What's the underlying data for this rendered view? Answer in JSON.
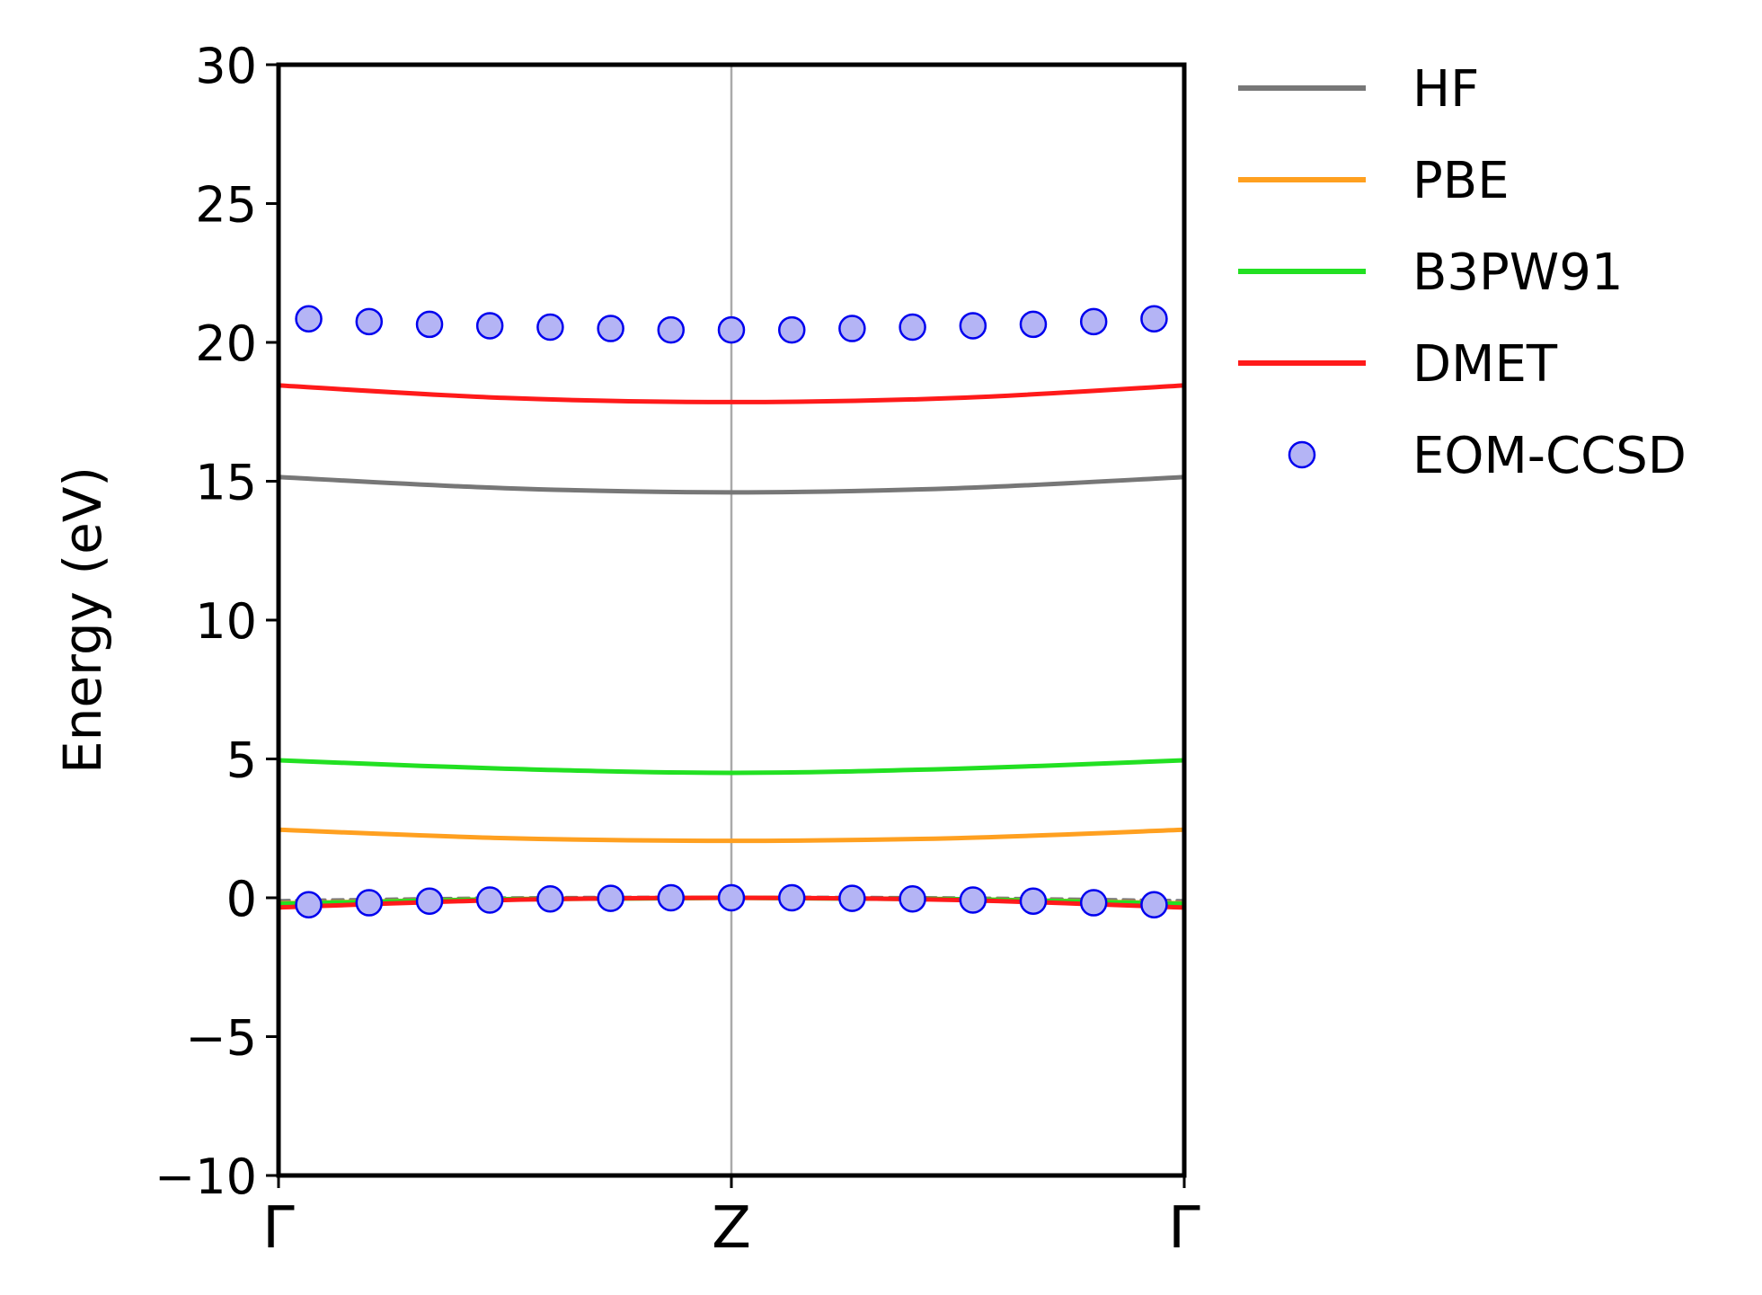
{
  "chart_data": {
    "type": "line",
    "title": "",
    "xlabel": "",
    "ylabel": "Energy (eV)",
    "ylim": [
      -10,
      30
    ],
    "xlim": [
      0,
      1
    ],
    "yticks": [
      -10,
      -5,
      0,
      5,
      10,
      15,
      20,
      25,
      30
    ],
    "ytick_labels": [
      "−10",
      "−5",
      "0",
      "5",
      "10",
      "15",
      "20",
      "25",
      "30"
    ],
    "xticks": [
      0,
      0.5,
      1
    ],
    "xtick_labels": [
      "Γ",
      "Z",
      "Γ"
    ],
    "vline_at": 0.5,
    "grid": false,
    "legend_position": "outside-right-top",
    "series": [
      {
        "name": "HF",
        "kind": "line",
        "color": "#777777",
        "bands": [
          {
            "x": [
              0,
              0.25,
              0.5,
              0.75,
              1
            ],
            "y": [
              15.15,
              14.75,
              14.6,
              14.75,
              15.15
            ]
          },
          {
            "x": [
              0,
              0.25,
              0.5,
              0.75,
              1
            ],
            "y": [
              -0.1,
              0.0,
              0.02,
              0.0,
              -0.1
            ],
            "dashed": true
          }
        ]
      },
      {
        "name": "PBE",
        "kind": "line",
        "color": "#ffa020",
        "bands": [
          {
            "x": [
              0,
              0.25,
              0.5,
              0.75,
              1
            ],
            "y": [
              2.45,
              2.15,
              2.05,
              2.15,
              2.45
            ]
          },
          {
            "x": [
              0,
              0.25,
              0.5,
              0.75,
              1
            ],
            "y": [
              -0.2,
              -0.05,
              0.0,
              -0.05,
              -0.2
            ]
          }
        ]
      },
      {
        "name": "B3PW91",
        "kind": "line",
        "color": "#22e022",
        "bands": [
          {
            "x": [
              0,
              0.25,
              0.5,
              0.75,
              1
            ],
            "y": [
              4.95,
              4.65,
              4.5,
              4.65,
              4.95
            ]
          },
          {
            "x": [
              0,
              0.25,
              0.5,
              0.75,
              1
            ],
            "y": [
              -0.22,
              -0.05,
              0.0,
              -0.05,
              -0.22
            ]
          }
        ]
      },
      {
        "name": "DMET",
        "kind": "line",
        "color": "#ff1a1a",
        "bands": [
          {
            "x": [
              0,
              0.25,
              0.5,
              0.75,
              1
            ],
            "y": [
              18.45,
              18.0,
              17.85,
              18.0,
              18.45
            ]
          },
          {
            "x": [
              0,
              0.25,
              0.5,
              0.75,
              1
            ],
            "y": [
              -0.35,
              -0.08,
              0.0,
              -0.08,
              -0.35
            ]
          }
        ]
      },
      {
        "name": "EOM-CCSD",
        "kind": "scatter",
        "color": "#0000ee",
        "fill": "#b4b4f5",
        "bands": [
          {
            "x": [
              0.0333,
              0.1,
              0.1667,
              0.2333,
              0.3,
              0.3667,
              0.4333,
              0.5,
              0.5667,
              0.6333,
              0.7,
              0.7667,
              0.8333,
              0.9,
              0.9667
            ],
            "y": [
              20.85,
              20.75,
              20.65,
              20.6,
              20.55,
              20.5,
              20.45,
              20.45,
              20.45,
              20.5,
              20.55,
              20.6,
              20.65,
              20.75,
              20.85
            ]
          },
          {
            "x": [
              0.0333,
              0.1,
              0.1667,
              0.2333,
              0.3,
              0.3667,
              0.4333,
              0.5,
              0.5667,
              0.6333,
              0.7,
              0.7667,
              0.8333,
              0.9,
              0.9667
            ],
            "y": [
              -0.25,
              -0.18,
              -0.12,
              -0.08,
              -0.04,
              -0.02,
              0.0,
              0.0,
              0.0,
              -0.02,
              -0.04,
              -0.08,
              -0.12,
              -0.18,
              -0.25
            ]
          }
        ]
      }
    ]
  }
}
